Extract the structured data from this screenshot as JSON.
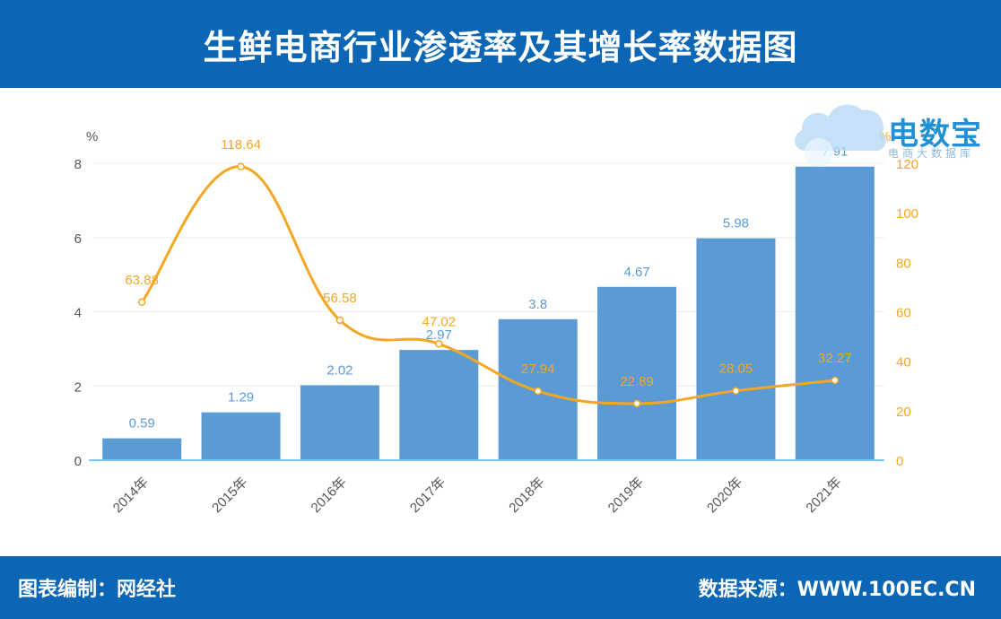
{
  "header": {
    "title": "生鲜电商行业渗透率及其增长率数据图"
  },
  "logo": {
    "main": "电数宝",
    "sub": "电商大数据库"
  },
  "footer": {
    "left": "图表编制：网经社",
    "right": "数据来源：WWW.100EC.CN"
  },
  "chart_data": {
    "type": "bar",
    "categories": [
      "2014年",
      "2015年",
      "2016年",
      "2017年",
      "2018年",
      "2019年",
      "2020年",
      "2021年"
    ],
    "series": [
      {
        "type": "bar",
        "axis": "left",
        "values": [
          0.59,
          1.29,
          2.02,
          2.97,
          3.8,
          4.67,
          5.98,
          7.91
        ],
        "labels": [
          "0.59",
          "1.29",
          "2.02",
          "2.97",
          "3.8",
          "4.67",
          "5.98",
          "7.91"
        ],
        "color": "#5b9bd5"
      },
      {
        "type": "line",
        "axis": "right",
        "values": [
          63.88,
          118.64,
          56.58,
          47.02,
          27.94,
          22.89,
          28.05,
          32.27
        ],
        "labels": [
          "63.88",
          "118.64",
          "56.58",
          "47.02",
          "27.94",
          "22.89",
          "28.05",
          "32.27"
        ],
        "color": "#f5a623"
      }
    ],
    "y_left": {
      "unit": "%",
      "ticks": [
        "0",
        "2",
        "4",
        "6",
        "8"
      ],
      "ylim": [
        0,
        8
      ]
    },
    "y_right": {
      "unit": "%",
      "ticks": [
        "0",
        "20",
        "40",
        "60",
        "80",
        "100",
        "120"
      ],
      "ylim": [
        0,
        120
      ]
    },
    "grid": true
  }
}
